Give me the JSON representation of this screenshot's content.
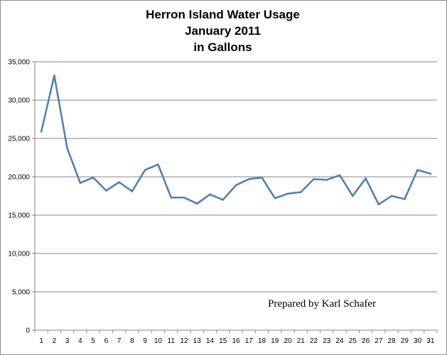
{
  "chart_data": {
    "type": "line",
    "title": [
      "Herron Island Water Usage",
      "January 2011",
      "in Gallons"
    ],
    "xlabel": "",
    "ylabel": "",
    "x": [
      1,
      2,
      3,
      4,
      5,
      6,
      7,
      8,
      9,
      10,
      11,
      12,
      13,
      14,
      15,
      16,
      17,
      18,
      19,
      20,
      21,
      22,
      23,
      24,
      25,
      26,
      27,
      28,
      29,
      30,
      31
    ],
    "series": [
      {
        "values": [
          25900,
          33200,
          23700,
          19200,
          19900,
          18200,
          19300,
          18100,
          20900,
          21600,
          17300,
          17300,
          16500,
          17700,
          17000,
          18900,
          19700,
          19900,
          17200,
          17800,
          18000,
          19700,
          19600,
          20200,
          17500,
          19800,
          16400,
          17500,
          17100,
          20900,
          20400
        ],
        "color": "#4a7ebb"
      }
    ],
    "ylim": [
      0,
      35000
    ],
    "yticks": [
      "0",
      "5,000",
      "10,000",
      "15,000",
      "20,000",
      "25,000",
      "30,000",
      "35,000"
    ],
    "xticks": [
      "1",
      "2",
      "3",
      "4",
      "5",
      "6",
      "7",
      "8",
      "9",
      "10",
      "11",
      "12",
      "13",
      "14",
      "15",
      "16",
      "17",
      "18",
      "19",
      "20",
      "21",
      "22",
      "23",
      "24",
      "25",
      "26",
      "27",
      "28",
      "29",
      "30",
      "31"
    ],
    "grid": true,
    "legend": "none",
    "annotation": "Prepared by Karl Schafer"
  }
}
